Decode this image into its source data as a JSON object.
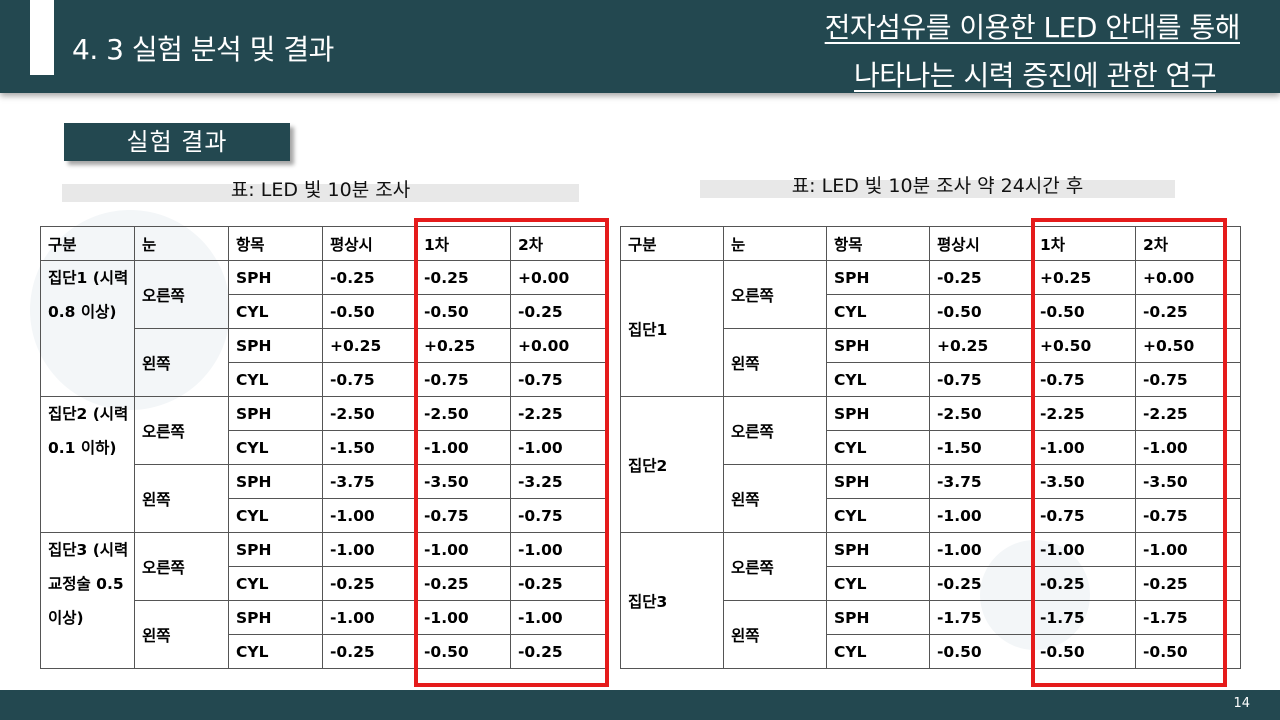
{
  "header": {
    "section_title": "4. 3 실험 분석 및 결과",
    "title_line1": "전자섬유를 이용한 LED 안대를 통해",
    "title_line2": "나타나는 시력 증진에 관한 연구"
  },
  "subtitle": "실험 결과",
  "table1": {
    "caption": "표: LED 빛 10분 조사",
    "columns": [
      "구분",
      "눈",
      "항목",
      "평상시",
      "1차",
      "2차"
    ],
    "groups": [
      {
        "name": "집단1 (시력 0.8 이상)",
        "eyes": [
          {
            "eye": "오른쪽",
            "rows": [
              [
                "SPH",
                "-0.25",
                "-0.25",
                "+0.00"
              ],
              [
                "CYL",
                "-0.50",
                "-0.50",
                "-0.25"
              ]
            ]
          },
          {
            "eye": "왼쪽",
            "rows": [
              [
                "SPH",
                "+0.25",
                "+0.25",
                "+0.00"
              ],
              [
                "CYL",
                "-0.75",
                "-0.75",
                "-0.75"
              ]
            ]
          }
        ]
      },
      {
        "name": "집단2 (시력 0.1 이하)",
        "eyes": [
          {
            "eye": "오른쪽",
            "rows": [
              [
                "SPH",
                "-2.50",
                "-2.50",
                "-2.25"
              ],
              [
                "CYL",
                "-1.50",
                "-1.00",
                "-1.00"
              ]
            ]
          },
          {
            "eye": "왼쪽",
            "rows": [
              [
                "SPH",
                "-3.75",
                "-3.50",
                "-3.25"
              ],
              [
                "CYL",
                "-1.00",
                "-0.75",
                "-0.75"
              ]
            ]
          }
        ]
      },
      {
        "name": "집단3 (시력교정술 0.5 이상)",
        "eyes": [
          {
            "eye": "오른쪽",
            "rows": [
              [
                "SPH",
                "-1.00",
                "-1.00",
                "-1.00"
              ],
              [
                "CYL",
                "-0.25",
                "-0.25",
                "-0.25"
              ]
            ]
          },
          {
            "eye": "왼쪽",
            "rows": [
              [
                "SPH",
                "-1.00",
                "-1.00",
                "-1.00"
              ],
              [
                "CYL",
                "-0.25",
                "-0.50",
                "-0.25"
              ]
            ]
          }
        ]
      }
    ]
  },
  "table2": {
    "caption": "표: LED 빛 10분 조사 약 24시간 후",
    "columns": [
      "구분",
      "눈",
      "항목",
      "평상시",
      "1차",
      "2차"
    ],
    "groups": [
      {
        "name": "집단1",
        "eyes": [
          {
            "eye": "오른쪽",
            "rows": [
              [
                "SPH",
                "-0.25",
                "+0.25",
                "+0.00"
              ],
              [
                "CYL",
                "-0.50",
                "-0.50",
                "-0.25"
              ]
            ]
          },
          {
            "eye": "왼쪽",
            "rows": [
              [
                "SPH",
                "+0.25",
                "+0.50",
                "+0.50"
              ],
              [
                "CYL",
                "-0.75",
                "-0.75",
                "-0.75"
              ]
            ]
          }
        ]
      },
      {
        "name": "집단2",
        "eyes": [
          {
            "eye": "오른쪽",
            "rows": [
              [
                "SPH",
                "-2.50",
                "-2.25",
                "-2.25"
              ],
              [
                "CYL",
                "-1.50",
                "-1.00",
                "-1.00"
              ]
            ]
          },
          {
            "eye": "왼쪽",
            "rows": [
              [
                "SPH",
                "-3.75",
                "-3.50",
                "-3.50"
              ],
              [
                "CYL",
                "-1.00",
                "-0.75",
                "-0.75"
              ]
            ]
          }
        ]
      },
      {
        "name": "집단3",
        "eyes": [
          {
            "eye": "오른쪽",
            "rows": [
              [
                "SPH",
                "-1.00",
                "-1.00",
                "-1.00"
              ],
              [
                "CYL",
                "-0.25",
                "-0.25",
                "-0.25"
              ]
            ]
          },
          {
            "eye": "왼쪽",
            "rows": [
              [
                "SPH",
                "-1.75",
                "-1.75",
                "-1.75"
              ],
              [
                "CYL",
                "-0.50",
                "-0.50",
                "-0.50"
              ]
            ]
          }
        ]
      }
    ]
  },
  "page_number": "14",
  "colors": {
    "header_bg": "#234850",
    "highlight_border": "#e51b1b"
  }
}
